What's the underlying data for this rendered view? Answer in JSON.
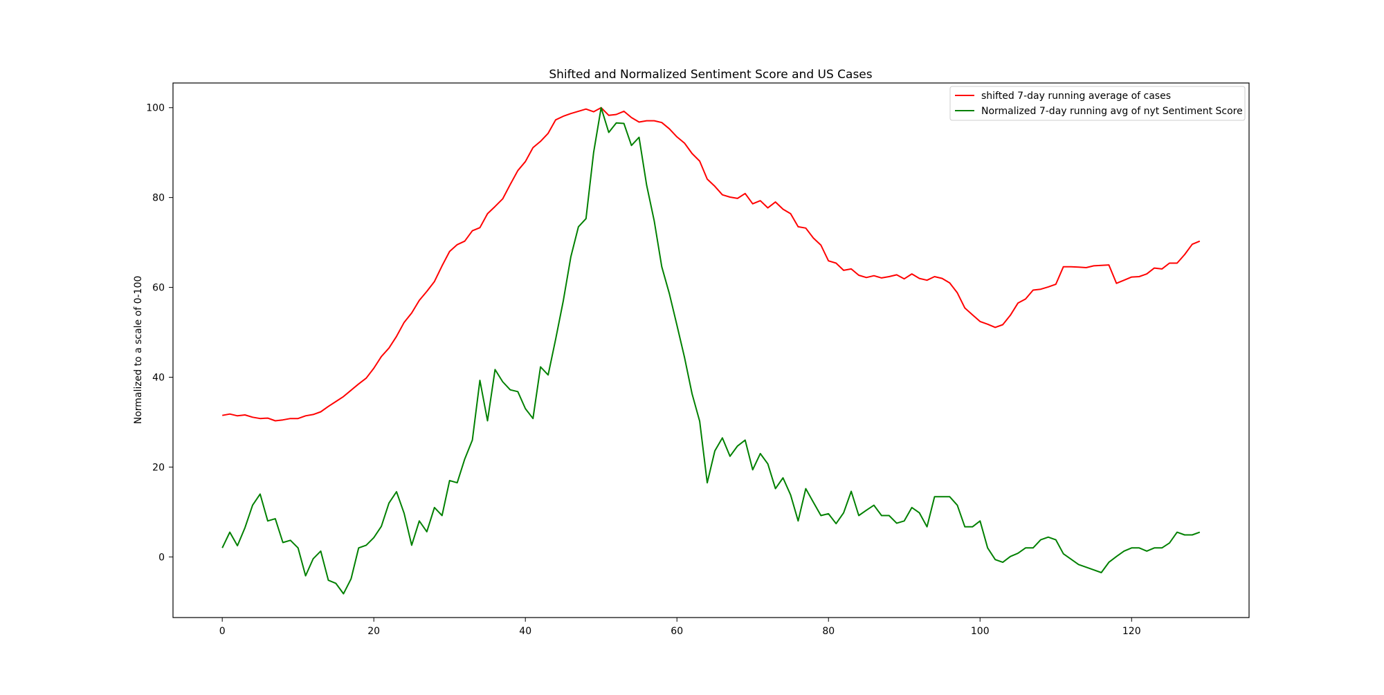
{
  "chart_data": {
    "type": "line",
    "title": "Shifted and Normalized Sentiment Score and US Cases",
    "xlabel": "",
    "ylabel": "Normalized to a scale of 0-100",
    "xlim": [
      -6.5,
      135.5
    ],
    "ylim": [
      -13.5,
      105.5
    ],
    "xticks": [
      0,
      20,
      40,
      60,
      80,
      100,
      120
    ],
    "yticks": [
      0,
      20,
      40,
      60,
      80,
      100
    ],
    "grid": false,
    "legend_position": "top-right",
    "series": [
      {
        "name": "shifted 7-day running average of cases",
        "color": "#ff0000",
        "values": [
          31.5,
          31.8,
          31.4,
          31.6,
          31.1,
          30.8,
          30.9,
          30.3,
          30.5,
          30.8,
          30.8,
          31.4,
          31.7,
          32.3,
          33.5,
          34.6,
          35.7,
          37.1,
          38.5,
          39.8,
          42.0,
          44.6,
          46.5,
          49.1,
          52.2,
          54.3,
          57.1,
          59.1,
          61.3,
          64.8,
          68.0,
          69.5,
          70.3,
          72.6,
          73.3,
          76.4,
          78.0,
          79.7,
          82.9,
          86.0,
          88.0,
          91.1,
          92.5,
          94.3,
          97.3,
          98.1,
          98.7,
          99.2,
          99.7,
          99.1,
          100.0,
          98.3,
          98.5,
          99.2,
          97.8,
          96.8,
          97.1,
          97.1,
          96.7,
          95.3,
          93.5,
          92.1,
          89.8,
          88.1,
          84.1,
          82.5,
          80.6,
          80.1,
          79.8,
          80.9,
          78.6,
          79.3,
          77.7,
          79.0,
          77.4,
          76.4,
          73.5,
          73.2,
          71.0,
          69.4,
          65.9,
          65.4,
          63.8,
          64.1,
          62.7,
          62.2,
          62.6,
          62.1,
          62.4,
          62.8,
          61.9,
          63.0,
          62.0,
          61.6,
          62.4,
          62.0,
          61.0,
          58.8,
          55.4,
          53.9,
          52.4,
          51.8,
          51.1,
          51.7,
          53.8,
          56.5,
          57.4,
          59.4,
          59.6,
          60.1,
          60.7,
          64.6,
          64.6,
          64.5,
          64.4,
          64.8,
          64.9,
          65.0,
          60.9,
          61.6,
          62.3,
          62.4,
          63.0,
          64.3,
          64.1,
          65.4,
          65.4,
          67.3,
          69.6,
          70.3
        ]
      },
      {
        "name": "Normalized 7-day running avg of nyt Sentiment Score",
        "color": "#008000",
        "values": [
          2.0,
          5.5,
          2.5,
          6.5,
          11.5,
          14.0,
          8.0,
          8.5,
          3.2,
          3.7,
          2.0,
          -4.2,
          -0.4,
          1.3,
          -5.2,
          -5.9,
          -8.2,
          -4.9,
          2.0,
          2.6,
          4.3,
          6.8,
          12.0,
          14.5,
          9.7,
          2.6,
          8.0,
          5.6,
          11.0,
          9.2,
          17.0,
          16.5,
          21.8,
          26.0,
          39.3,
          30.3,
          41.7,
          39.0,
          37.2,
          36.8,
          33.0,
          30.8,
          42.3,
          40.5,
          48.5,
          57.0,
          66.8,
          73.5,
          75.3,
          90.0,
          100.0,
          94.5,
          96.6,
          96.5,
          91.6,
          93.4,
          82.8,
          74.8,
          64.6,
          58.6,
          51.6,
          44.4,
          36.3,
          30.2,
          16.5,
          23.6,
          26.5,
          22.4,
          24.7,
          26.0,
          19.4,
          23.0,
          20.7,
          15.2,
          17.6,
          13.8,
          8.0,
          15.2,
          12.2,
          9.2,
          9.6,
          7.4,
          9.8,
          14.6,
          9.2,
          10.4,
          11.5,
          9.2,
          9.2,
          7.5,
          8.0,
          11.0,
          9.8,
          6.7,
          13.4,
          13.4,
          13.4,
          11.5,
          6.7,
          6.7,
          8.0,
          2.0,
          -0.6,
          -1.2,
          0.1,
          0.8,
          2.0,
          2.0,
          3.8,
          4.4,
          3.8,
          0.7,
          -0.5,
          -1.7,
          -2.3,
          -2.9,
          -3.5,
          -1.2,
          0.1,
          1.3,
          2.0,
          2.0,
          1.3,
          2.0,
          2.0,
          3.1,
          5.5,
          4.9,
          4.9,
          5.5
        ]
      }
    ]
  }
}
